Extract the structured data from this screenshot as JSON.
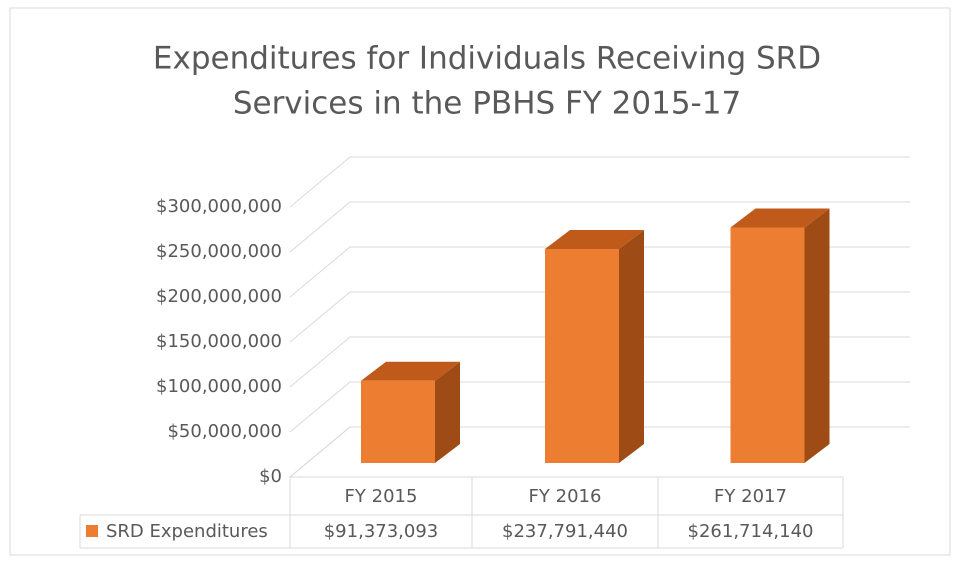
{
  "chart_data": {
    "type": "bar",
    "title": [
      "Expenditures for Individuals Receiving SRD",
      "Services in the PBHS FY 2015-17"
    ],
    "categories": [
      "FY 2015",
      "FY 2016",
      "FY 2017"
    ],
    "series": [
      {
        "name": "SRD Expenditures",
        "color": "#ed7d31",
        "values": [
          91373093,
          237791440,
          261714140
        ],
        "value_labels": [
          "$91,373,093",
          "$237,791,440",
          "$261,714,140"
        ]
      }
    ],
    "ylim": [
      0,
      300000000
    ],
    "yticks": [
      {
        "value": 0,
        "label": "$0"
      },
      {
        "value": 50000000,
        "label": "$50,000,000"
      },
      {
        "value": 100000000,
        "label": "$100,000,000"
      },
      {
        "value": 150000000,
        "label": "$150,000,000"
      },
      {
        "value": 200000000,
        "label": "$200,000,000"
      },
      {
        "value": 250000000,
        "label": "$250,000,000"
      },
      {
        "value": 300000000,
        "label": "$300,000,000"
      }
    ],
    "grid": true
  }
}
